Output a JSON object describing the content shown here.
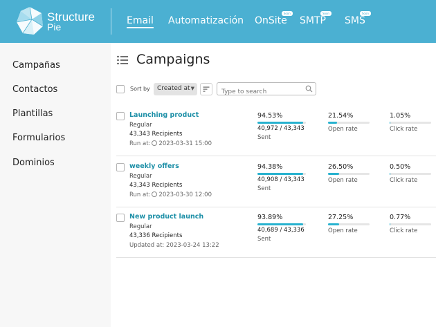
{
  "brand": {
    "line1": "Structure",
    "line2": "Pie",
    "color": "#4bb0d2"
  },
  "nav": [
    {
      "label": "Email",
      "active": true
    },
    {
      "label": "Automatización"
    },
    {
      "label": "OnSite",
      "badge": "Soon"
    },
    {
      "label": "SMTP",
      "badge": "Soon"
    },
    {
      "label": "SMS",
      "badge": "Soon"
    }
  ],
  "sidebar": {
    "items": [
      "Campañas",
      "Contactos",
      "Plantillas",
      "Formularios",
      "Dominios"
    ]
  },
  "main": {
    "title": "Campaigns",
    "sort_label": "Sort by",
    "sort_value": "Created at",
    "search_placeholder": "Type to search"
  },
  "campaigns": [
    {
      "name": "Launching product",
      "type": "Regular",
      "recipients": "43,343 Recipients",
      "date_label": "Run at:",
      "date": "2023-03-31 15:00",
      "sent_pct": "94.53%",
      "sent_fraction": 0.9453,
      "sent_count": "40,972 / 43,343",
      "sent_label": "Sent",
      "open_pct": "21.54%",
      "open_fraction": 0.2154,
      "open_label": "Open rate",
      "click_pct": "1.05%",
      "click_fraction": 0.0105,
      "click_label": "Click rate"
    },
    {
      "name": "weekly offers",
      "type": "Regular",
      "recipients": "43,343 Recipients",
      "date_label": "Run at:",
      "date": "2023-03-30 12:00",
      "sent_pct": "94.38%",
      "sent_fraction": 0.9438,
      "sent_count": "40,908 / 43,343",
      "sent_label": "Sent",
      "open_pct": "26.50%",
      "open_fraction": 0.265,
      "open_label": "Open rate",
      "click_pct": "0.50%",
      "click_fraction": 0.005,
      "click_label": "Click rate"
    },
    {
      "name": "New product launch",
      "type": "Regular",
      "recipients": "43,336 Recipients",
      "date_label": "Updated at:",
      "date": "2023-03-24 13:22",
      "sent_pct": "93.89%",
      "sent_fraction": 0.9389,
      "sent_count": "40,689 / 43,336",
      "sent_label": "Sent",
      "open_pct": "27.25%",
      "open_fraction": 0.2725,
      "open_label": "Open rate",
      "click_pct": "0.77%",
      "click_fraction": 0.0077,
      "click_label": "Click rate"
    }
  ]
}
